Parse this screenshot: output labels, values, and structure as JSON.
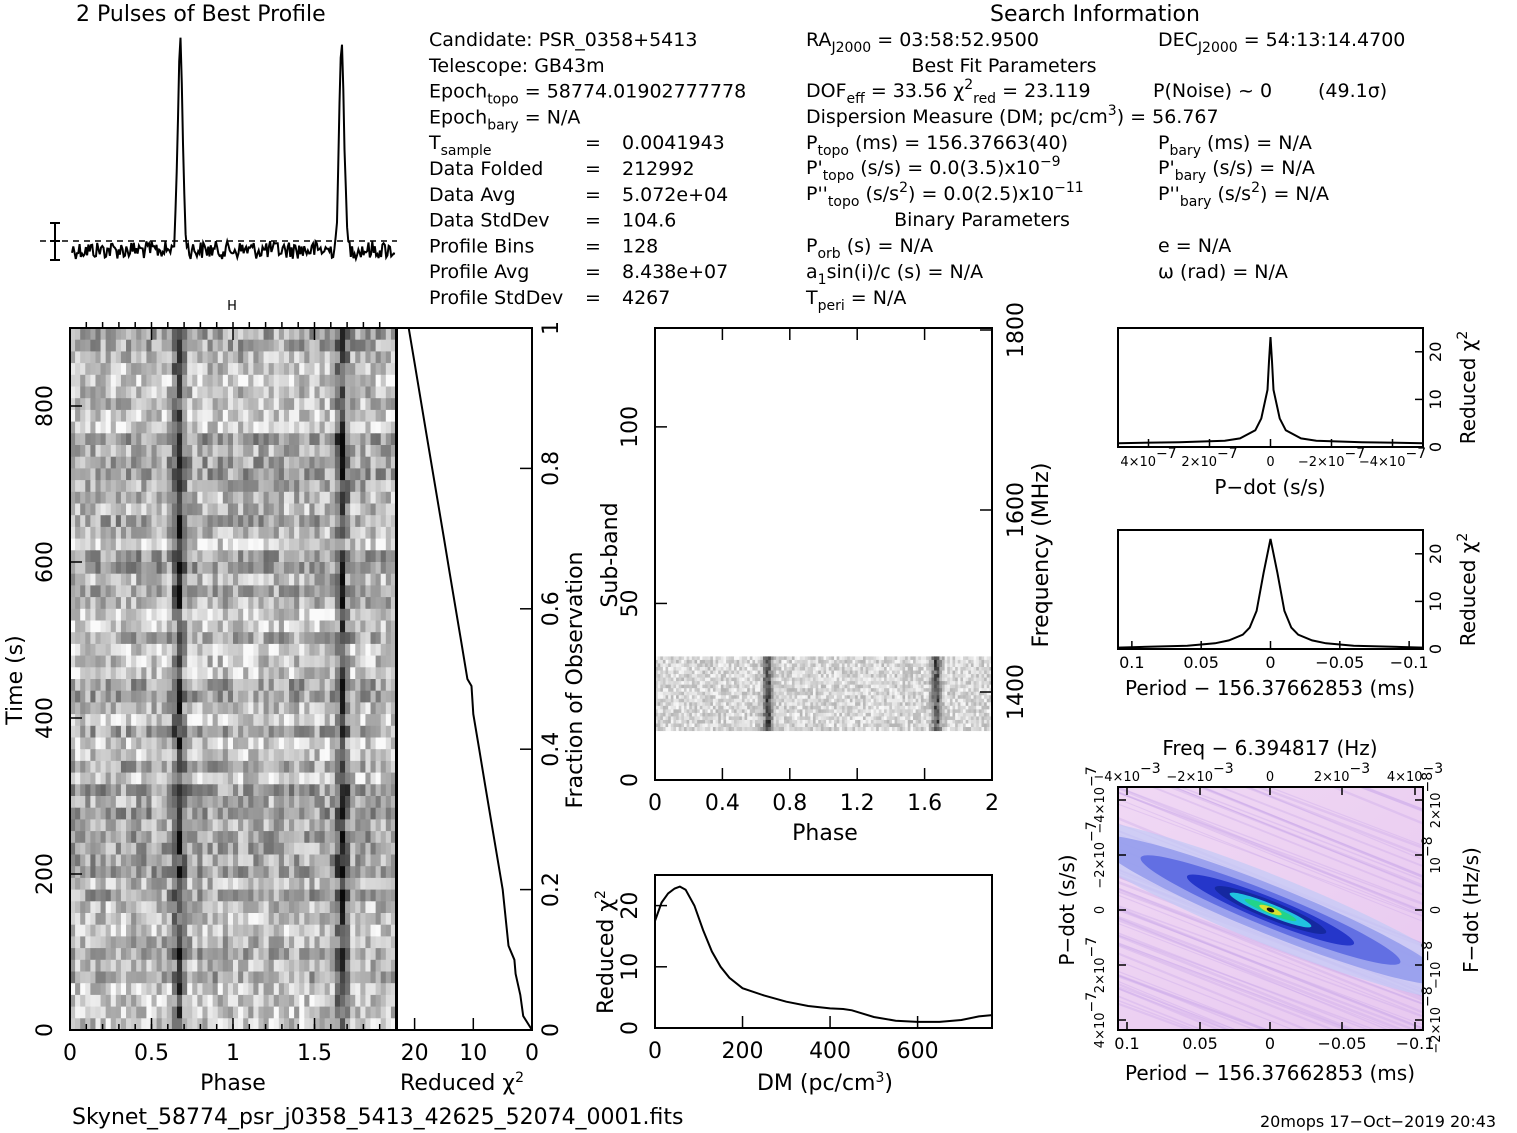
{
  "header": {
    "profile_title": "2 Pulses of Best Profile",
    "search_info_title": "Search Information",
    "best_fit_title": "Best Fit Parameters",
    "binary_title": "Binary Parameters"
  },
  "info_col1": [
    {
      "label": "Candidate:",
      "value": "PSR_0358+5413"
    },
    {
      "label": "Telescope:",
      "value": "GB43m"
    },
    {
      "label": "Epoch",
      "sub": "topo",
      "value": "= 58774.01902777778"
    },
    {
      "label": "Epoch",
      "sub": "bary",
      "value": "= N/A"
    },
    {
      "label": "T",
      "sub": "sample",
      "value": "0.0041943"
    },
    {
      "label": "Data Folded",
      "value": "212992"
    },
    {
      "label": "Data Avg",
      "value": "5.072e+04"
    },
    {
      "label": "Data StdDev",
      "value": "104.6"
    },
    {
      "label": "Profile Bins",
      "value": "128"
    },
    {
      "label": "Profile Avg",
      "value": "8.438e+07"
    },
    {
      "label": "Profile StdDev",
      "value": "4267"
    }
  ],
  "info_col2": {
    "ra": {
      "label": "RA",
      "sub": "J2000",
      "value": "= 03:58:52.9500"
    },
    "dof": {
      "label": "DOF",
      "sub": "eff",
      "value": "= 33.56"
    },
    "chi2": {
      "label": "χ",
      "sup": "2",
      "sub": "red",
      "value": "= 23.119"
    },
    "dm": {
      "text": "Dispersion Measure (DM; pc/cm",
      "sup": "3",
      "value": ") = 56.767"
    },
    "ptopo": {
      "label": "P",
      "sub": "topo",
      "value": "(ms) =  156.37663(40)"
    },
    "pdtopo": {
      "label": "P'",
      "sub": "topo",
      "value": "(s/s) = 0.0(3.5)x10",
      "exp": "−9"
    },
    "pddtopo": {
      "label": "P''",
      "sub": "topo",
      "value": "(s/s",
      "sup": "2",
      "value2": ") = 0.0(2.5)x10",
      "exp": "−11"
    },
    "porb": {
      "label": "P",
      "sub": "orb",
      "value": "(s) = N/A"
    },
    "a1": {
      "pre": "a",
      "sub": "1",
      "value": "sin(i)/c (s) = N/A"
    },
    "tperi": {
      "label": "T",
      "sub": "peri",
      "value": "= N/A"
    }
  },
  "info_col3": {
    "dec": {
      "label": "DEC",
      "sub": "J2000",
      "value": "= 54:13:14.4700"
    },
    "pnoise": {
      "value": "P(Noise) ~ 0",
      "sigma": "(49.1σ)"
    },
    "pbary": {
      "label": "P",
      "sub": "bary",
      "value": "(ms) = N/A"
    },
    "pdbary": {
      "label": "P'",
      "sub": "bary",
      "value": "(s/s) = N/A"
    },
    "pddbary": {
      "label": "P''",
      "sub": "bary",
      "value": "(s/s",
      "sup": "2",
      "value2": ") = N/A"
    },
    "e": {
      "value": "e = N/A"
    },
    "omega": {
      "value": "ω (rad) = N/A"
    }
  },
  "chart_data": [
    {
      "id": "profile",
      "type": "line",
      "title": "2 Pulses of Best Profile",
      "x_phase": [
        0,
        2
      ],
      "peaks_phase": [
        0.67,
        1.67
      ],
      "note": "two pulses per 2 turns; noise baseline with dashed mean line and error bar"
    },
    {
      "id": "time_phase",
      "type": "heatmap",
      "xlabel": "Phase",
      "ylabel": "Time (s)",
      "xlim": [
        0,
        2
      ],
      "ylim": [
        0,
        900
      ],
      "x_ticks": [
        "0",
        "0.5",
        "1",
        "1.5"
      ],
      "y_ticks": [
        "0",
        "200",
        "400",
        "600",
        "800"
      ],
      "pulse_phase": [
        0.67,
        1.67
      ],
      "colormap": "grayscale"
    },
    {
      "id": "reduced_chi2_time",
      "type": "line",
      "xlabel": "Reduced χ",
      "xlabel_sup": "2",
      "ylabel": "Fraction of Observation",
      "xlim": [
        23,
        0
      ],
      "ylim": [
        0,
        1
      ],
      "x_ticks": [
        "20",
        "10",
        "0"
      ],
      "y_ticks": [
        "0",
        "0.2",
        "0.4",
        "0.6",
        "0.8",
        "1"
      ],
      "x": [
        0,
        1.5,
        2,
        2.8,
        3,
        4,
        5,
        6,
        7,
        8,
        9,
        10,
        10.3,
        11,
        12,
        13,
        14,
        15,
        17,
        18,
        20,
        21
      ],
      "y": [
        0,
        0.02,
        0.05,
        0.08,
        0.1,
        0.12,
        0.2,
        0.25,
        0.3,
        0.35,
        0.4,
        0.45,
        0.49,
        0.5,
        0.55,
        0.6,
        0.65,
        0.7,
        0.8,
        0.85,
        0.95,
        1.0
      ]
    },
    {
      "id": "subband_phase",
      "type": "heatmap",
      "xlabel": "Phase",
      "ylabel": "Sub-band",
      "y2label": "Frequency (MHz)",
      "xlim": [
        0,
        2
      ],
      "ylim": [
        0,
        128
      ],
      "x_ticks": [
        "0",
        "0.4",
        "0.8",
        "1.2",
        "1.6",
        "2"
      ],
      "y_ticks": [
        "0",
        "50",
        "100"
      ],
      "y2_ticks": [
        "1400",
        "1600",
        "1800"
      ],
      "signal_subbands": [
        14,
        35
      ],
      "pulse_phase": [
        0.67,
        1.67
      ]
    },
    {
      "id": "dm_curve",
      "type": "line",
      "xlabel": "DM (pc/cm",
      "xlabel_sup": "3",
      "xlabel_end": ")",
      "ylabel": "Reduced χ",
      "ylabel_sup": "2",
      "xlim": [
        0,
        770
      ],
      "ylim": [
        0,
        25
      ],
      "x_ticks": [
        "0",
        "200",
        "400",
        "600"
      ],
      "y_ticks": [
        "0",
        "10",
        "20"
      ],
      "x": [
        0,
        15,
        30,
        45,
        57,
        70,
        90,
        110,
        130,
        150,
        170,
        200,
        250,
        300,
        350,
        400,
        430,
        450,
        500,
        550,
        600,
        650,
        700,
        740,
        770
      ],
      "y": [
        17.5,
        20.5,
        22,
        22.8,
        23.1,
        22.6,
        20,
        16,
        12.5,
        10,
        8.2,
        6.5,
        5.3,
        4.3,
        3.6,
        3.2,
        3.1,
        2.9,
        1.8,
        1.2,
        1.0,
        1.0,
        1.3,
        1.9,
        2.1
      ]
    },
    {
      "id": "pdot_curve",
      "type": "line",
      "xlabel": "P−dot (s/s)",
      "ylabel": "Reduced χ",
      "ylabel_sup": "2",
      "xlim": [
        5e-07,
        -5e-07
      ],
      "ylim": [
        0,
        25
      ],
      "x_ticks": [
        "4×10",
        "2×10",
        "0",
        "−2×10",
        "−4×10"
      ],
      "x_tick_exps": [
        "−7",
        "−7",
        "",
        "−7",
        "−7"
      ],
      "y_ticks": [
        "0",
        "10",
        "20"
      ],
      "x": [
        5e-07,
        3e-07,
        1.5e-07,
        1e-07,
        5e-08,
        3e-08,
        1e-08,
        5e-09,
        0,
        -5e-09,
        -1e-08,
        -3e-08,
        -5e-08,
        -1e-07,
        -1.5e-07,
        -3e-07,
        -5e-07
      ],
      "y": [
        0.8,
        1.0,
        1.3,
        1.8,
        3.5,
        6,
        12,
        18,
        23.1,
        18,
        12,
        6,
        3.5,
        1.8,
        1.3,
        1.0,
        0.8
      ]
    },
    {
      "id": "period_curve",
      "type": "line",
      "xlabel": "Period − 156.37662853 (ms)",
      "ylabel": "Reduced χ",
      "ylabel_sup": "2",
      "xlim": [
        0.11,
        -0.11
      ],
      "ylim": [
        0,
        25
      ],
      "x_ticks": [
        "0.1",
        "0.05",
        "0",
        "−0.05",
        "−0.1"
      ],
      "y_ticks": [
        "0",
        "10",
        "20"
      ],
      "x": [
        0.11,
        0.06,
        0.04,
        0.03,
        0.02,
        0.015,
        0.01,
        0.005,
        0,
        -0.005,
        -0.01,
        -0.015,
        -0.02,
        -0.03,
        -0.04,
        -0.06,
        -0.11
      ],
      "y": [
        0.3,
        0.7,
        1.2,
        1.8,
        3,
        4.5,
        8,
        16,
        23.1,
        16,
        8,
        4.5,
        3,
        1.8,
        1.2,
        0.7,
        0.3
      ]
    },
    {
      "id": "pp_dot_plane",
      "type": "heatmap",
      "title": "Freq − 6.394817 (Hz)",
      "xlabel": "Period − 156.37662853 (ms)",
      "ylabel": "P−dot (s/s)",
      "y2label": "F−dot (Hz/s)",
      "x_ticks": [
        "0.1",
        "0.05",
        "0",
        "−0.05",
        "−0.1"
      ],
      "top_ticks": [
        "−4×10",
        "−2×10",
        "0",
        "2×10",
        "4×10"
      ],
      "top_tick_exps": [
        "−3",
        "−3",
        "",
        "−3",
        "−3"
      ],
      "y_ticks": [
        "4×10",
        "2×10",
        "0",
        "−2×10",
        "−4×10"
      ],
      "y_tick_exps": [
        "−7",
        "−7",
        "",
        "−7",
        "−7"
      ],
      "y2_ticks": [
        "−2×10",
        "−10",
        "0",
        "10",
        "2×10"
      ],
      "y2_tick_exps": [
        "−8",
        "−8",
        "",
        "−8",
        "−8"
      ],
      "colormap": "pink-blue-green"
    }
  ],
  "footer": {
    "filename": "Skynet_58774_psr_j0358_5413_42625_52074_0001.fits",
    "stamp": "20mops 17−Oct−2019 20:43"
  }
}
